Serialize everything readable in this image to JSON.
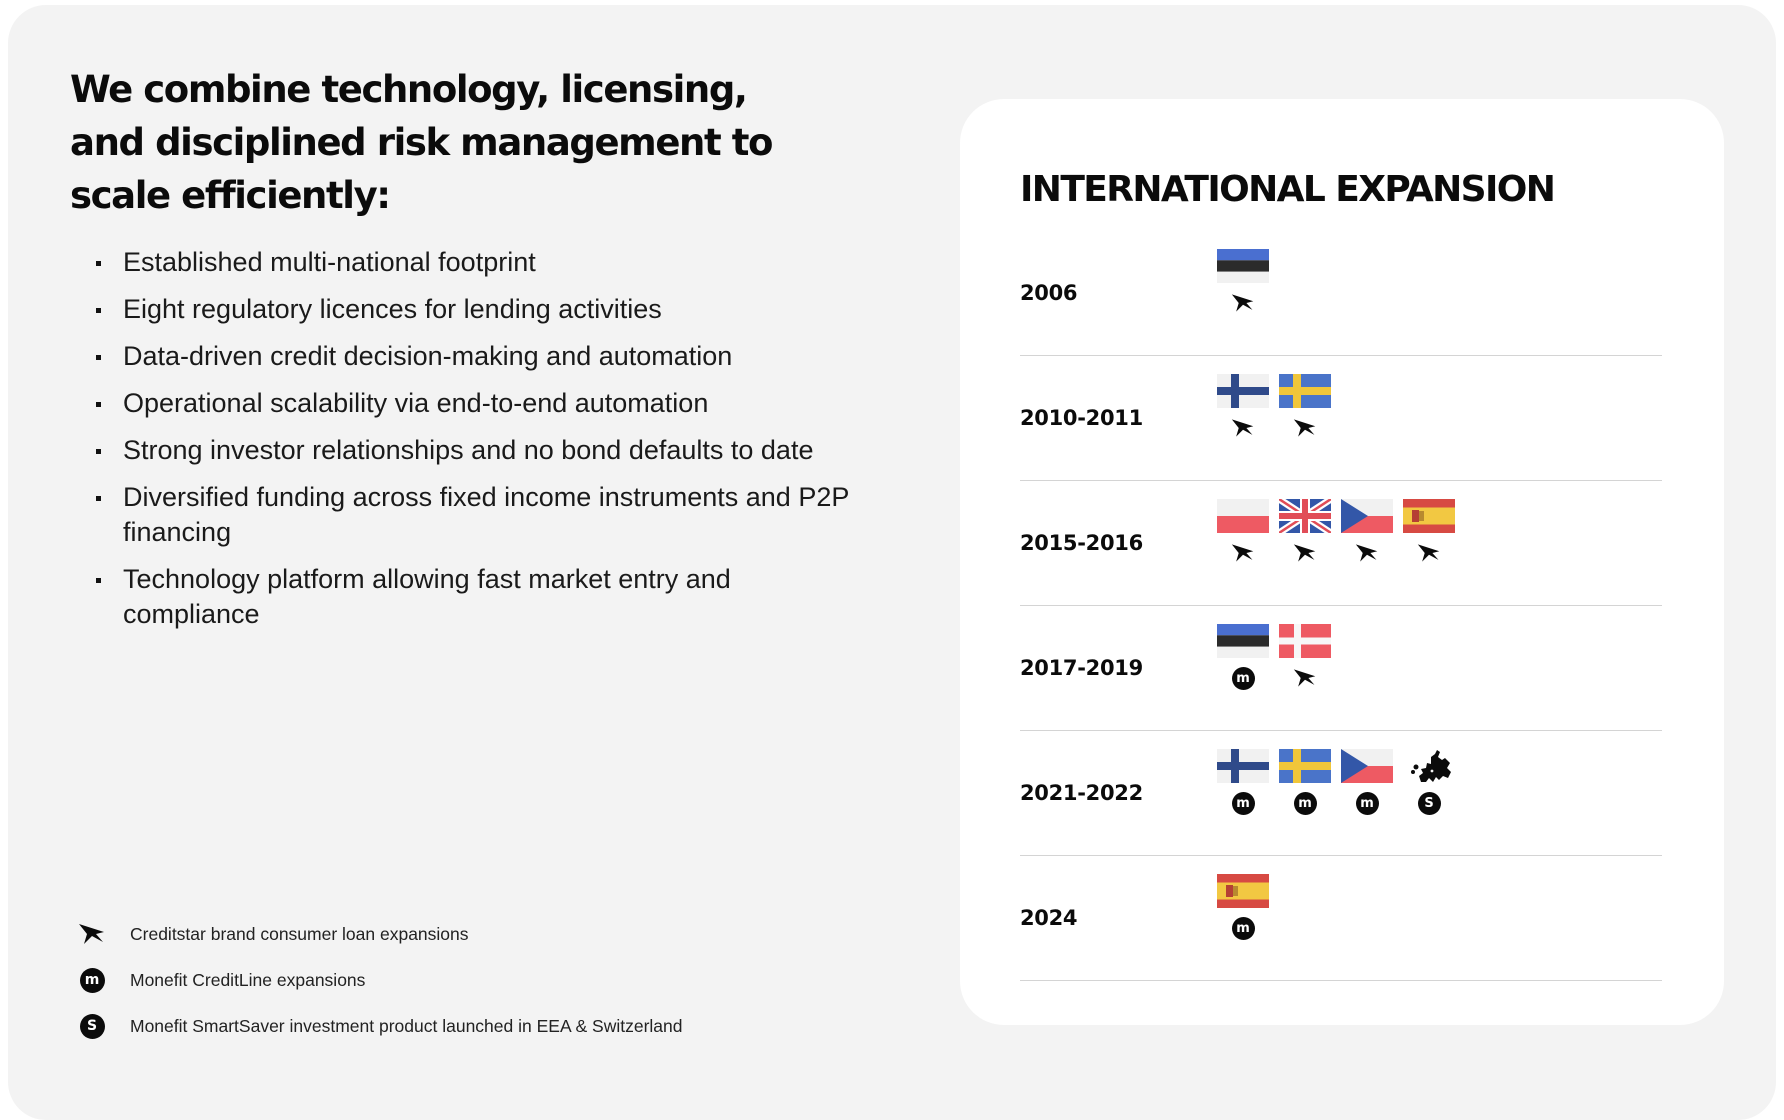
{
  "headline": "We combine technology, licensing, and disciplined risk management to scale efficiently:",
  "bullets": [
    "Established multi-national footprint",
    "Eight regulatory licences for lending activities",
    "Data-driven credit decision-making and automation",
    "Operational scalability via end-to-end automation",
    "Strong investor relationships and no bond defaults to date",
    "Diversified funding across fixed income instruments and P2P financing",
    "Technology platform allowing fast market entry and compliance"
  ],
  "legend": [
    {
      "icon": "creditstar-icon",
      "text": "Creditstar brand consumer loan expansions"
    },
    {
      "icon": "monefit-m-icon",
      "mark_text": "m",
      "text": "Monefit CreditLine expansions"
    },
    {
      "icon": "monefit-s-icon",
      "mark_text": "S",
      "text": "Monefit SmartSaver investment product launched in EEA & Switzerland"
    }
  ],
  "card": {
    "title": "INTERNATIONAL EXPANSION",
    "rows": [
      {
        "year": "2006",
        "entries": [
          {
            "flag": "estonia",
            "mark": "creditstar"
          }
        ]
      },
      {
        "year": "2010-2011",
        "entries": [
          {
            "flag": "finland",
            "mark": "creditstar"
          },
          {
            "flag": "sweden",
            "mark": "creditstar"
          }
        ]
      },
      {
        "year": "2015-2016",
        "entries": [
          {
            "flag": "poland",
            "mark": "creditstar"
          },
          {
            "flag": "uk",
            "mark": "creditstar"
          },
          {
            "flag": "czech",
            "mark": "creditstar"
          },
          {
            "flag": "spain",
            "mark": "creditstar"
          }
        ]
      },
      {
        "year": "2017-2019",
        "entries": [
          {
            "flag": "estonia",
            "mark": "m"
          },
          {
            "flag": "denmark",
            "mark": "creditstar"
          }
        ]
      },
      {
        "year": "2021-2022",
        "entries": [
          {
            "flag": "finland",
            "mark": "m"
          },
          {
            "flag": "sweden",
            "mark": "m"
          },
          {
            "flag": "czech",
            "mark": "m"
          },
          {
            "flag": "europe-map",
            "mark": "S"
          }
        ]
      },
      {
        "year": "2024",
        "entries": [
          {
            "flag": "spain",
            "mark": "m"
          }
        ]
      }
    ]
  },
  "colors": {
    "page_bg": "#f3f3f3",
    "card_bg": "#ffffff",
    "text": "#0b0b0b",
    "divider": "#d4d4d4"
  }
}
